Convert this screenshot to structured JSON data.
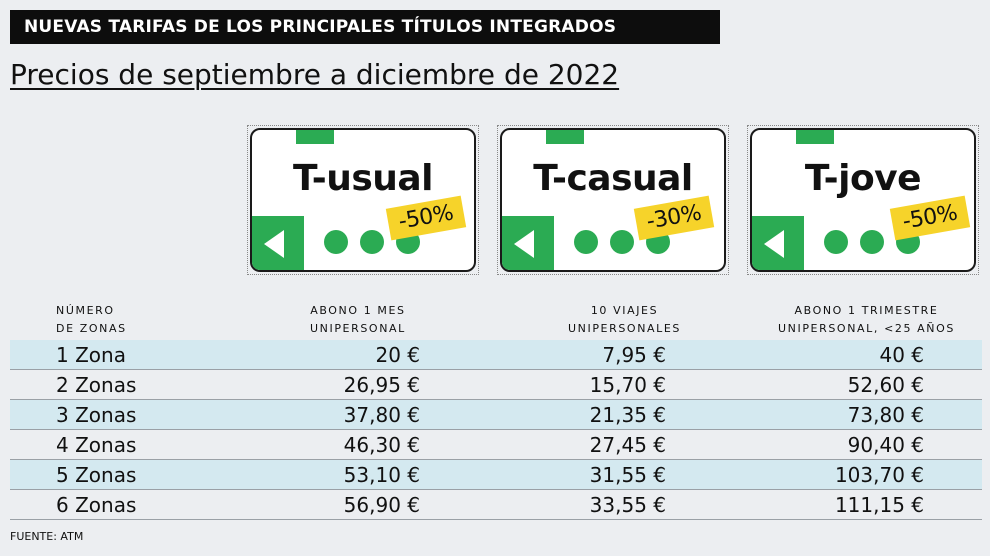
{
  "header": {
    "banner": "NUEVAS TARIFAS DE LOS PRINCIPALES TÍTULOS INTEGRADOS",
    "title": "Precios de septiembre a diciembre de 2022"
  },
  "cards": [
    {
      "name": "T-usual",
      "discount": "-50%"
    },
    {
      "name": "T-casual",
      "discount": "-30%"
    },
    {
      "name": "T-jove",
      "discount": "-50%"
    }
  ],
  "colors": {
    "green": "#2bab53",
    "yellow": "#f6d32a",
    "row_shade": "#d4e9f0"
  },
  "chart_data": {
    "type": "table",
    "columns": [
      [
        "NÚMERO",
        "DE ZONAS"
      ],
      [
        "ABONO 1 MES",
        "UNIPERSONAL"
      ],
      [
        "10 VIAJES",
        "UNIPERSONALES"
      ],
      [
        "ABONO 1 TRIMESTRE",
        "UNIPERSONAL, <25 AÑOS"
      ]
    ],
    "rows": [
      [
        "1 Zona",
        "20 €",
        "7,95 €",
        "40 €"
      ],
      [
        "2 Zonas",
        "26,95 €",
        "15,70 €",
        "52,60 €"
      ],
      [
        "3 Zonas",
        "37,80 €",
        "21,35 €",
        "73,80 €"
      ],
      [
        "4 Zonas",
        "46,30 €",
        "27,45 €",
        "90,40 €"
      ],
      [
        "5 Zonas",
        "53,10 €",
        "31,55 €",
        "103,70 €"
      ],
      [
        "6 Zonas",
        "56,90 €",
        "33,55 €",
        "111,15 €"
      ]
    ]
  },
  "source": "FUENTE: ATM"
}
